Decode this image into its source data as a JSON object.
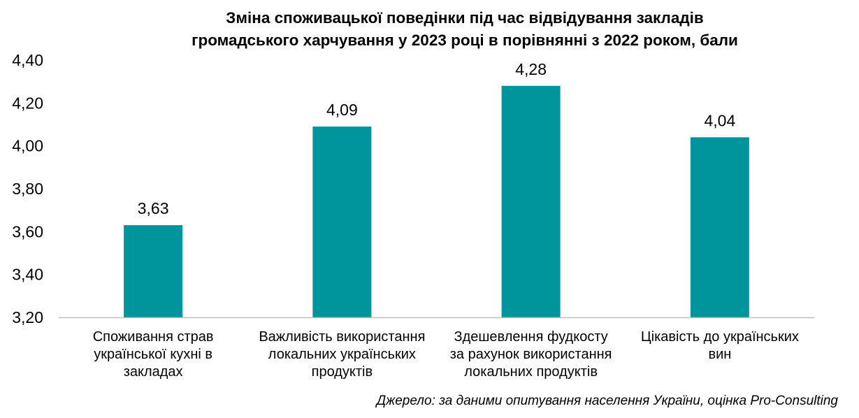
{
  "chart_data": {
    "type": "bar",
    "title_lines": [
      "Зміна споживацької поведінки під час відвідування закладів",
      "громадського харчування у 2023 році в порівнянні з 2022 роком, бали"
    ],
    "categories": [
      [
        "Споживання страв",
        "української кухні в",
        "закладах"
      ],
      [
        "Важливість використання",
        "локальних українських",
        "продуктів"
      ],
      [
        "Здешевлення фудкосту",
        "за рахунок використання",
        "локальних продуктів"
      ],
      [
        "Цікавість до українських",
        "вин"
      ]
    ],
    "values": [
      3.63,
      4.09,
      4.28,
      4.04
    ],
    "data_labels": [
      "3,63",
      "4,09",
      "4,28",
      "4,04"
    ],
    "ylim": [
      3.2,
      4.4
    ],
    "yticks": [
      3.2,
      3.4,
      3.6,
      3.8,
      4.0,
      4.2,
      4.4
    ],
    "ytick_labels": [
      "3,20",
      "3,40",
      "3,60",
      "3,80",
      "4,00",
      "4,20",
      "4,40"
    ],
    "bar_color": "#00949c",
    "axis_color": "#bfbfbf",
    "grid": false,
    "legend": "none",
    "source": "Джерело: за даними опитування населення України, оцінка Pro-Consulting"
  }
}
